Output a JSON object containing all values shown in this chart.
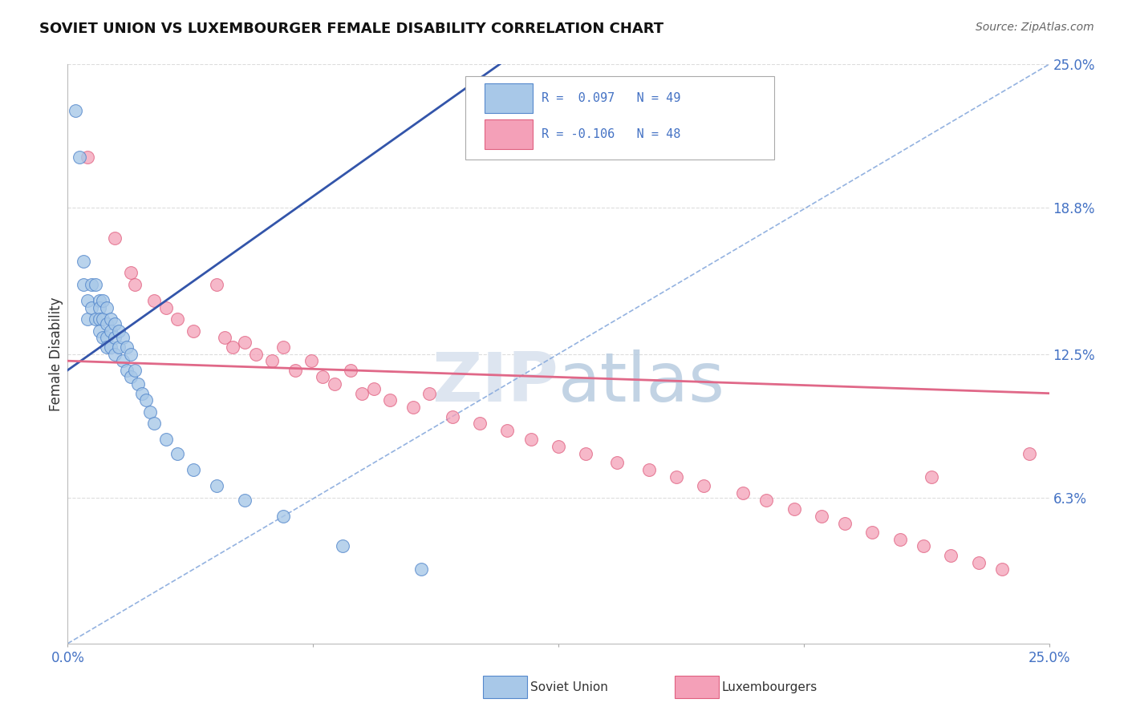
{
  "title": "SOVIET UNION VS LUXEMBOURGER FEMALE DISABILITY CORRELATION CHART",
  "source": "Source: ZipAtlas.com",
  "ylabel": "Female Disability",
  "xlim": [
    0.0,
    0.25
  ],
  "ylim": [
    0.0,
    0.25
  ],
  "y_tick_vals": [
    0.063,
    0.125,
    0.188,
    0.25
  ],
  "y_tick_labels": [
    "6.3%",
    "12.5%",
    "18.8%",
    "25.0%"
  ],
  "color_soviet": "#a8c8e8",
  "color_lux": "#f4a0b8",
  "border_soviet": "#5588cc",
  "border_lux": "#e06080",
  "trendline_soviet_color": "#3355aa",
  "trendline_lux_color": "#e06888",
  "dashed_line_color": "#88aadd",
  "grid_color": "#dddddd",
  "watermark_color": "#dde5f0",
  "soviet_x": [
    0.002,
    0.003,
    0.004,
    0.004,
    0.005,
    0.005,
    0.006,
    0.006,
    0.007,
    0.007,
    0.008,
    0.008,
    0.008,
    0.008,
    0.009,
    0.009,
    0.009,
    0.01,
    0.01,
    0.01,
    0.01,
    0.011,
    0.011,
    0.011,
    0.012,
    0.012,
    0.012,
    0.013,
    0.013,
    0.014,
    0.014,
    0.015,
    0.015,
    0.016,
    0.016,
    0.017,
    0.018,
    0.019,
    0.02,
    0.021,
    0.022,
    0.025,
    0.028,
    0.032,
    0.038,
    0.045,
    0.055,
    0.07,
    0.09
  ],
  "soviet_y": [
    0.23,
    0.21,
    0.165,
    0.155,
    0.148,
    0.14,
    0.155,
    0.145,
    0.155,
    0.14,
    0.148,
    0.145,
    0.14,
    0.135,
    0.148,
    0.14,
    0.132,
    0.145,
    0.138,
    0.132,
    0.128,
    0.14,
    0.135,
    0.128,
    0.138,
    0.132,
    0.125,
    0.135,
    0.128,
    0.132,
    0.122,
    0.128,
    0.118,
    0.125,
    0.115,
    0.118,
    0.112,
    0.108,
    0.105,
    0.1,
    0.095,
    0.088,
    0.082,
    0.075,
    0.068,
    0.062,
    0.055,
    0.042,
    0.032
  ],
  "lux_x": [
    0.005,
    0.012,
    0.016,
    0.017,
    0.022,
    0.025,
    0.028,
    0.032,
    0.038,
    0.04,
    0.042,
    0.045,
    0.048,
    0.052,
    0.055,
    0.058,
    0.062,
    0.065,
    0.068,
    0.072,
    0.075,
    0.078,
    0.082,
    0.088,
    0.092,
    0.098,
    0.105,
    0.112,
    0.118,
    0.125,
    0.132,
    0.14,
    0.148,
    0.155,
    0.162,
    0.172,
    0.178,
    0.185,
    0.192,
    0.198,
    0.205,
    0.212,
    0.218,
    0.225,
    0.232,
    0.238,
    0.22,
    0.245
  ],
  "lux_y": [
    0.21,
    0.175,
    0.16,
    0.155,
    0.148,
    0.145,
    0.14,
    0.135,
    0.155,
    0.132,
    0.128,
    0.13,
    0.125,
    0.122,
    0.128,
    0.118,
    0.122,
    0.115,
    0.112,
    0.118,
    0.108,
    0.11,
    0.105,
    0.102,
    0.108,
    0.098,
    0.095,
    0.092,
    0.088,
    0.085,
    0.082,
    0.078,
    0.075,
    0.072,
    0.068,
    0.065,
    0.062,
    0.058,
    0.055,
    0.052,
    0.048,
    0.045,
    0.042,
    0.038,
    0.035,
    0.032,
    0.072,
    0.082
  ],
  "trendline_soviet_x0": 0.0,
  "trendline_soviet_y0": 0.118,
  "trendline_soviet_x1": 0.025,
  "trendline_soviet_y1": 0.148,
  "trendline_lux_x0": 0.0,
  "trendline_lux_y0": 0.122,
  "trendline_lux_x1": 0.25,
  "trendline_lux_y1": 0.108
}
